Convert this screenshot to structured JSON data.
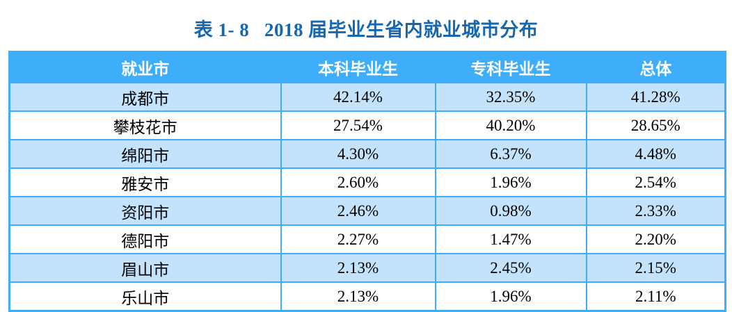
{
  "title": "表 1- 8   2018 届毕业生省内就业城市分布",
  "colors": {
    "title_text": "#1467b1",
    "header_bg": "#3faefa",
    "header_text": "#ffffff",
    "row_alt_bg": "#c3e3fc",
    "row_bg": "#ffffff",
    "border": "#3faefa",
    "body_text": "#000000"
  },
  "table": {
    "headers": [
      "就业市",
      "本科毕业生",
      "专科毕业生",
      "总体"
    ],
    "rows": [
      [
        "成都市",
        "42.14%",
        "32.35%",
        "41.28%"
      ],
      [
        "攀枝花市",
        "27.54%",
        "40.20%",
        "28.65%"
      ],
      [
        "绵阳市",
        "4.30%",
        "6.37%",
        "4.48%"
      ],
      [
        "雅安市",
        "2.60%",
        "1.96%",
        "2.54%"
      ],
      [
        "资阳市",
        "2.46%",
        "0.98%",
        "2.33%"
      ],
      [
        "德阳市",
        "2.27%",
        "1.47%",
        "2.20%"
      ],
      [
        "眉山市",
        "2.13%",
        "2.45%",
        "2.15%"
      ],
      [
        "乐山市",
        "2.13%",
        "1.96%",
        "2.11%"
      ]
    ]
  }
}
